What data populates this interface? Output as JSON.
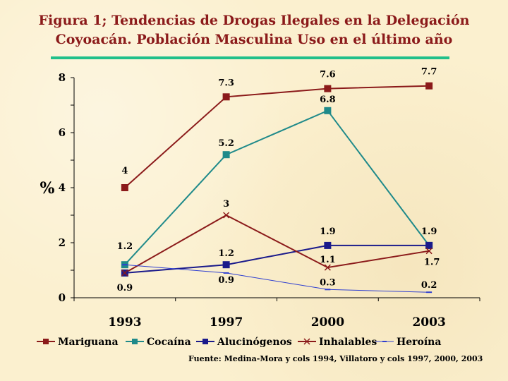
{
  "slide": {
    "title_line1": "Figura 1; Tendencias de Drogas Ilegales en  la Delegación",
    "title_line2": "Coyoacán. Población Masculina Uso en el último año",
    "source": "Fuente: Medina-Mora y cols 1994, Villatoro y cols 1997, 2000, 2003"
  },
  "colors": {
    "title": "#8b1a1a",
    "rule": "#20c08a",
    "background": "#fbf0cf"
  },
  "chart_data": {
    "type": "line",
    "title": "",
    "xlabel": "",
    "ylabel": "%",
    "categories": [
      "1993",
      "1997",
      "2000",
      "2003"
    ],
    "ylim": [
      0,
      8
    ],
    "yticks": [
      "0",
      "2",
      "4",
      "6",
      "8"
    ],
    "grid": false,
    "legend": "bottom",
    "series": [
      {
        "name": "Mariguana",
        "color": "#8b1a1a",
        "marker": "square",
        "values": [
          4,
          7.3,
          7.6,
          7.7
        ],
        "labels": [
          "4",
          "7.3",
          "7.6",
          "7.7"
        ]
      },
      {
        "name": "Cocaína",
        "color": "#1f8a8a",
        "marker": "square",
        "values": [
          1.2,
          5.2,
          6.8,
          1.9
        ],
        "labels": [
          "1.2",
          "5.2",
          "6.8",
          ""
        ]
      },
      {
        "name": "Alucinógenos",
        "color": "#1a1a8b",
        "marker": "square",
        "values": [
          0.9,
          1.2,
          1.9,
          1.9
        ],
        "labels": [
          "0.9",
          "1.2",
          "1.9",
          "1.9"
        ]
      },
      {
        "name": "Inhalables",
        "color": "#8b1a1a",
        "marker": "x",
        "values": [
          0.9,
          3,
          1.1,
          1.7
        ],
        "labels": [
          "",
          "3",
          "1.1",
          "1.7"
        ]
      },
      {
        "name": "Heroína",
        "color": "#2f3fd0",
        "marker": "dash",
        "values": [
          1.2,
          0.9,
          0.3,
          0.2
        ],
        "labels": [
          "",
          "0.9",
          "0.3",
          "0.2"
        ]
      }
    ]
  }
}
